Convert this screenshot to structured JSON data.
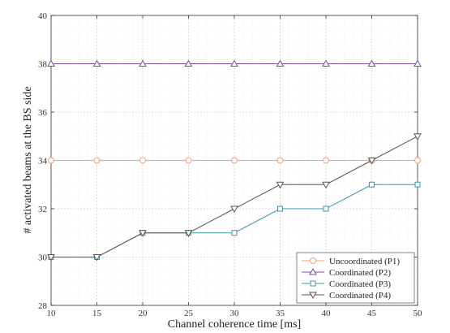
{
  "chart_data": {
    "type": "line",
    "title": "",
    "xlabel": "Channel coherence time [ms]",
    "ylabel": "# activated beams at the BS side",
    "xlim": [
      10,
      50
    ],
    "ylim": [
      28,
      40
    ],
    "x": [
      10,
      15,
      20,
      25,
      30,
      35,
      40,
      45,
      50
    ],
    "x_ticks": [
      10,
      15,
      20,
      25,
      30,
      35,
      40,
      45,
      50
    ],
    "y_ticks": [
      28,
      30,
      32,
      34,
      36,
      38,
      40
    ],
    "grid": true,
    "minor_grid": true,
    "legend_position": "bottom-right",
    "series": [
      {
        "name": "Uncoordinated (P1)",
        "marker": "circle",
        "color": "#f0a07a",
        "values": [
          34,
          34,
          34,
          34,
          34,
          34,
          34,
          34,
          34
        ]
      },
      {
        "name": "Coordinated (P2)",
        "marker": "triangle-up",
        "color": "#7b4fa6",
        "values": [
          38,
          38,
          38,
          38,
          38,
          38,
          38,
          38,
          38
        ]
      },
      {
        "name": "Coordinated (P3)",
        "marker": "square",
        "color": "#3b98a8",
        "values": [
          30,
          30,
          31,
          31,
          31,
          32,
          32,
          33,
          33
        ]
      },
      {
        "name": "Coordinated (P4)",
        "marker": "triangle-down",
        "color": "#555555",
        "values": [
          30,
          30,
          31,
          31,
          32,
          33,
          33,
          34,
          35
        ]
      }
    ]
  }
}
